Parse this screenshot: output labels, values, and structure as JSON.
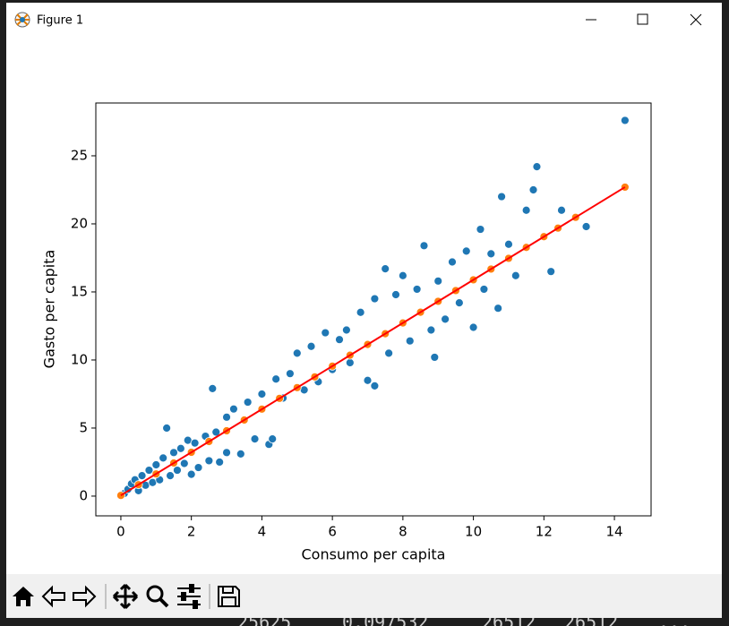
{
  "window": {
    "title": "Figure 1"
  },
  "background_text": [
    "25625",
    "0.097532",
    "26512",
    "26512",
    "..."
  ],
  "chart_data": {
    "type": "scatter",
    "x_label": "Consumo per capita",
    "y_label": "Gasto per capita",
    "xlim": [
      -0.71,
      15.04
    ],
    "ylim": [
      -1.45,
      28.88
    ],
    "xticks": [
      0,
      2,
      4,
      6,
      8,
      10,
      12,
      14
    ],
    "yticks": [
      0,
      5,
      10,
      15,
      20,
      25
    ],
    "grid": false,
    "series": [
      {
        "color": "#1f77b4",
        "mode": "markers",
        "x": [
          0.1,
          0.2,
          0.3,
          0.4,
          0.5,
          0.6,
          0.7,
          0.8,
          0.9,
          1.0,
          1.1,
          1.2,
          1.3,
          1.4,
          1.5,
          1.6,
          1.7,
          1.8,
          1.9,
          2.0,
          2.1,
          2.2,
          2.4,
          2.5,
          2.6,
          2.7,
          2.8,
          3.0,
          3.0,
          3.2,
          3.4,
          3.6,
          3.8,
          4.0,
          4.2,
          4.3,
          4.4,
          4.6,
          4.8,
          5.0,
          5.2,
          5.4,
          5.6,
          5.8,
          6.0,
          6.2,
          6.4,
          6.5,
          6.8,
          7.0,
          7.2,
          7.2,
          7.5,
          7.6,
          7.8,
          8.0,
          8.2,
          8.4,
          8.6,
          8.8,
          8.9,
          9.0,
          9.2,
          9.4,
          9.6,
          9.8,
          10.0,
          10.2,
          10.3,
          10.5,
          10.7,
          10.8,
          11.0,
          11.2,
          11.5,
          11.8,
          11.7,
          12.2,
          12.5,
          13.2,
          14.3
        ],
        "values": [
          0.2,
          0.5,
          0.9,
          1.2,
          0.4,
          1.5,
          0.8,
          1.9,
          1.0,
          2.3,
          1.2,
          2.8,
          5.0,
          1.5,
          3.2,
          1.9,
          3.5,
          2.4,
          4.1,
          1.6,
          3.9,
          2.1,
          4.4,
          2.6,
          7.9,
          4.7,
          2.5,
          5.8,
          3.2,
          6.4,
          3.1,
          6.9,
          4.2,
          7.5,
          3.8,
          4.2,
          8.6,
          7.2,
          9.0,
          10.5,
          7.8,
          11.0,
          8.4,
          12.0,
          9.3,
          11.5,
          12.2,
          9.8,
          13.5,
          8.5,
          14.5,
          8.1,
          16.7,
          10.5,
          14.8,
          16.2,
          11.4,
          15.2,
          18.4,
          12.2,
          10.2,
          15.8,
          13.0,
          17.2,
          14.2,
          18.0,
          12.4,
          19.6,
          15.2,
          17.8,
          13.8,
          22.0,
          18.5,
          16.2,
          21.0,
          24.2,
          22.5,
          16.5,
          21.0,
          19.8,
          27.6
        ]
      },
      {
        "color": "#ff7f0e",
        "mode": "markers",
        "x": [
          0,
          0.5,
          1,
          1.5,
          2,
          2.5,
          3,
          3.5,
          4,
          4.5,
          5,
          5.5,
          6,
          6.5,
          7,
          7.5,
          8,
          8.5,
          9,
          9.5,
          10,
          10.5,
          11,
          11.5,
          12,
          12.4,
          12.9,
          14.3
        ],
        "values": [
          0.05,
          0.84,
          1.63,
          2.43,
          3.22,
          4.01,
          4.8,
          5.59,
          6.39,
          7.18,
          7.97,
          8.76,
          9.55,
          10.35,
          11.14,
          11.93,
          12.72,
          13.51,
          14.31,
          15.1,
          15.89,
          16.68,
          17.47,
          18.27,
          19.06,
          19.69,
          20.48,
          22.7
        ]
      },
      {
        "color": "#ff0000",
        "mode": "line",
        "x": [
          0,
          14.3
        ],
        "values": [
          0.05,
          22.7
        ]
      }
    ]
  }
}
